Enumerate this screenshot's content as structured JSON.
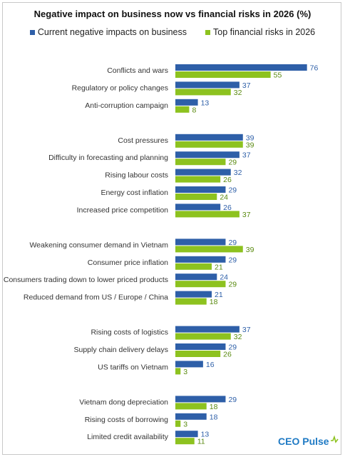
{
  "chart_data": {
    "type": "bar",
    "orientation": "horizontal",
    "title": "Negative impact on business now vs financial risks in 2026 (%)",
    "legend_position": "top",
    "grid": false,
    "xlim": [
      0,
      80
    ],
    "series": [
      {
        "name": "Current negative impacts on business",
        "color": "#2e5fa8"
      },
      {
        "name": "Top financial risks in 2026",
        "color": "#8dc21f"
      }
    ],
    "groups": [
      {
        "categories": [
          {
            "label": "Conflicts and wars",
            "values": [
              76,
              55
            ]
          },
          {
            "label": "Regulatory or policy changes",
            "values": [
              37,
              32
            ]
          },
          {
            "label": "Anti-corruption campaign",
            "values": [
              13,
              8
            ]
          }
        ]
      },
      {
        "categories": [
          {
            "label": "Cost pressures",
            "values": [
              39,
              39
            ]
          },
          {
            "label": "Difficulty in forecasting and planning",
            "values": [
              37,
              29
            ]
          },
          {
            "label": "Rising labour costs",
            "values": [
              32,
              26
            ]
          },
          {
            "label": "Energy cost inflation",
            "values": [
              29,
              24
            ]
          },
          {
            "label": "Increased price competition",
            "values": [
              26,
              37
            ]
          }
        ]
      },
      {
        "categories": [
          {
            "label": "Weakening consumer demand in Vietnam",
            "values": [
              29,
              39
            ]
          },
          {
            "label": "Consumer price inflation",
            "values": [
              29,
              21
            ]
          },
          {
            "label": "Consumers trading down to lower priced products",
            "values": [
              24,
              29
            ]
          },
          {
            "label": "Reduced demand from US / Europe / China",
            "values": [
              21,
              18
            ]
          }
        ]
      },
      {
        "categories": [
          {
            "label": "Rising costs of logistics",
            "values": [
              37,
              32
            ]
          },
          {
            "label": "Supply chain delivery delays",
            "values": [
              29,
              26
            ]
          },
          {
            "label": "US tariffs on Vietnam",
            "values": [
              16,
              3
            ]
          }
        ]
      },
      {
        "categories": [
          {
            "label": "Vietnam dong depreciation",
            "values": [
              29,
              18
            ]
          },
          {
            "label": "Rising costs of borrowing",
            "values": [
              18,
              3
            ]
          },
          {
            "label": "Limited credit availability",
            "values": [
              13,
              11
            ]
          }
        ]
      }
    ]
  },
  "logo": {
    "text": "CEO Pulse"
  }
}
